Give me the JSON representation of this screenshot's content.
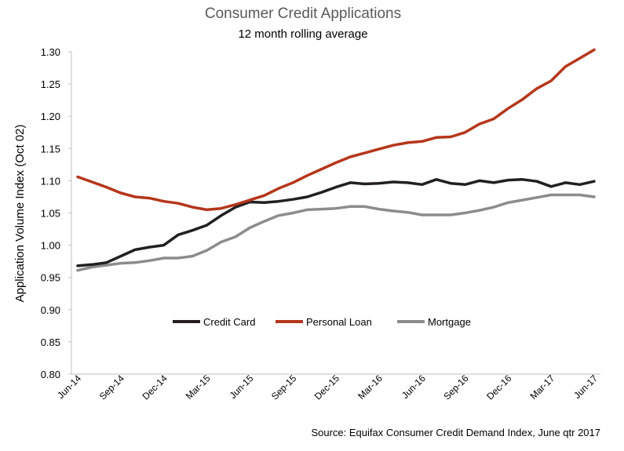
{
  "chart_data": {
    "type": "line",
    "title": "Consumer  Credit Applications",
    "subtitle": "12 month rolling average",
    "ylabel": "Application Volume Index (Oct 02)",
    "xlabel": "",
    "source": "Source: Equifax Consumer Credit Demand Index, June qtr 2017",
    "ylim": [
      0.8,
      1.3
    ],
    "yticks": [
      "0.80",
      "0.85",
      "0.90",
      "0.95",
      "1.00",
      "1.05",
      "1.10",
      "1.15",
      "1.20",
      "1.25",
      "1.30"
    ],
    "x": [
      "Jun-14",
      "Jul-14",
      "Aug-14",
      "Sep-14",
      "Oct-14",
      "Nov-14",
      "Dec-14",
      "Jan-15",
      "Feb-15",
      "Mar-15",
      "Apr-15",
      "May-15",
      "Jun-15",
      "Jul-15",
      "Aug-15",
      "Sep-15",
      "Oct-15",
      "Nov-15",
      "Dec-15",
      "Jan-16",
      "Feb-16",
      "Mar-16",
      "Apr-16",
      "May-16",
      "Jun-16",
      "Jul-16",
      "Aug-16",
      "Sep-16",
      "Oct-16",
      "Nov-16",
      "Dec-16",
      "Jan-17",
      "Feb-17",
      "Mar-17",
      "Apr-17",
      "May-17",
      "Jun-17"
    ],
    "xtick_labels": [
      "Jun-14",
      "Sep-14",
      "Dec-14",
      "Mar-15",
      "Jun-15",
      "Sep-15",
      "Dec-15",
      "Mar-16",
      "Jun-16",
      "Sep-16",
      "Dec-16",
      "Mar-17",
      "Jun-17"
    ],
    "legend_position": "center",
    "grid": false,
    "series": [
      {
        "name": "Credit Card",
        "color": "#231f20",
        "values": [
          0.968,
          0.97,
          0.973,
          0.983,
          0.993,
          0.997,
          1.0,
          1.016,
          1.023,
          1.031,
          1.046,
          1.059,
          1.067,
          1.066,
          1.068,
          1.071,
          1.075,
          1.082,
          1.09,
          1.097,
          1.095,
          1.096,
          1.098,
          1.097,
          1.094,
          1.102,
          1.096,
          1.094,
          1.1,
          1.097,
          1.101,
          1.102,
          1.099,
          1.091,
          1.097,
          1.094,
          1.099
        ]
      },
      {
        "name": "Personal Loan",
        "color": "#b5361b",
        "values": [
          1.106,
          1.098,
          1.09,
          1.081,
          1.075,
          1.073,
          1.068,
          1.065,
          1.059,
          1.055,
          1.057,
          1.063,
          1.07,
          1.077,
          1.088,
          1.097,
          1.108,
          1.118,
          1.128,
          1.137,
          1.143,
          1.149,
          1.155,
          1.159,
          1.161,
          1.167,
          1.168,
          1.175,
          1.188,
          1.196,
          1.212,
          1.226,
          1.243,
          1.255,
          1.277,
          1.29,
          1.303
        ]
      },
      {
        "name": "Mortgage",
        "color": "#8c8c8c",
        "values": [
          0.961,
          0.966,
          0.969,
          0.972,
          0.973,
          0.976,
          0.98,
          0.98,
          0.983,
          0.992,
          1.005,
          1.013,
          1.027,
          1.037,
          1.046,
          1.05,
          1.055,
          1.056,
          1.057,
          1.06,
          1.06,
          1.056,
          1.053,
          1.051,
          1.047,
          1.047,
          1.047,
          1.05,
          1.054,
          1.059,
          1.066,
          1.07,
          1.074,
          1.078,
          1.078,
          1.078,
          1.075
        ]
      }
    ]
  }
}
